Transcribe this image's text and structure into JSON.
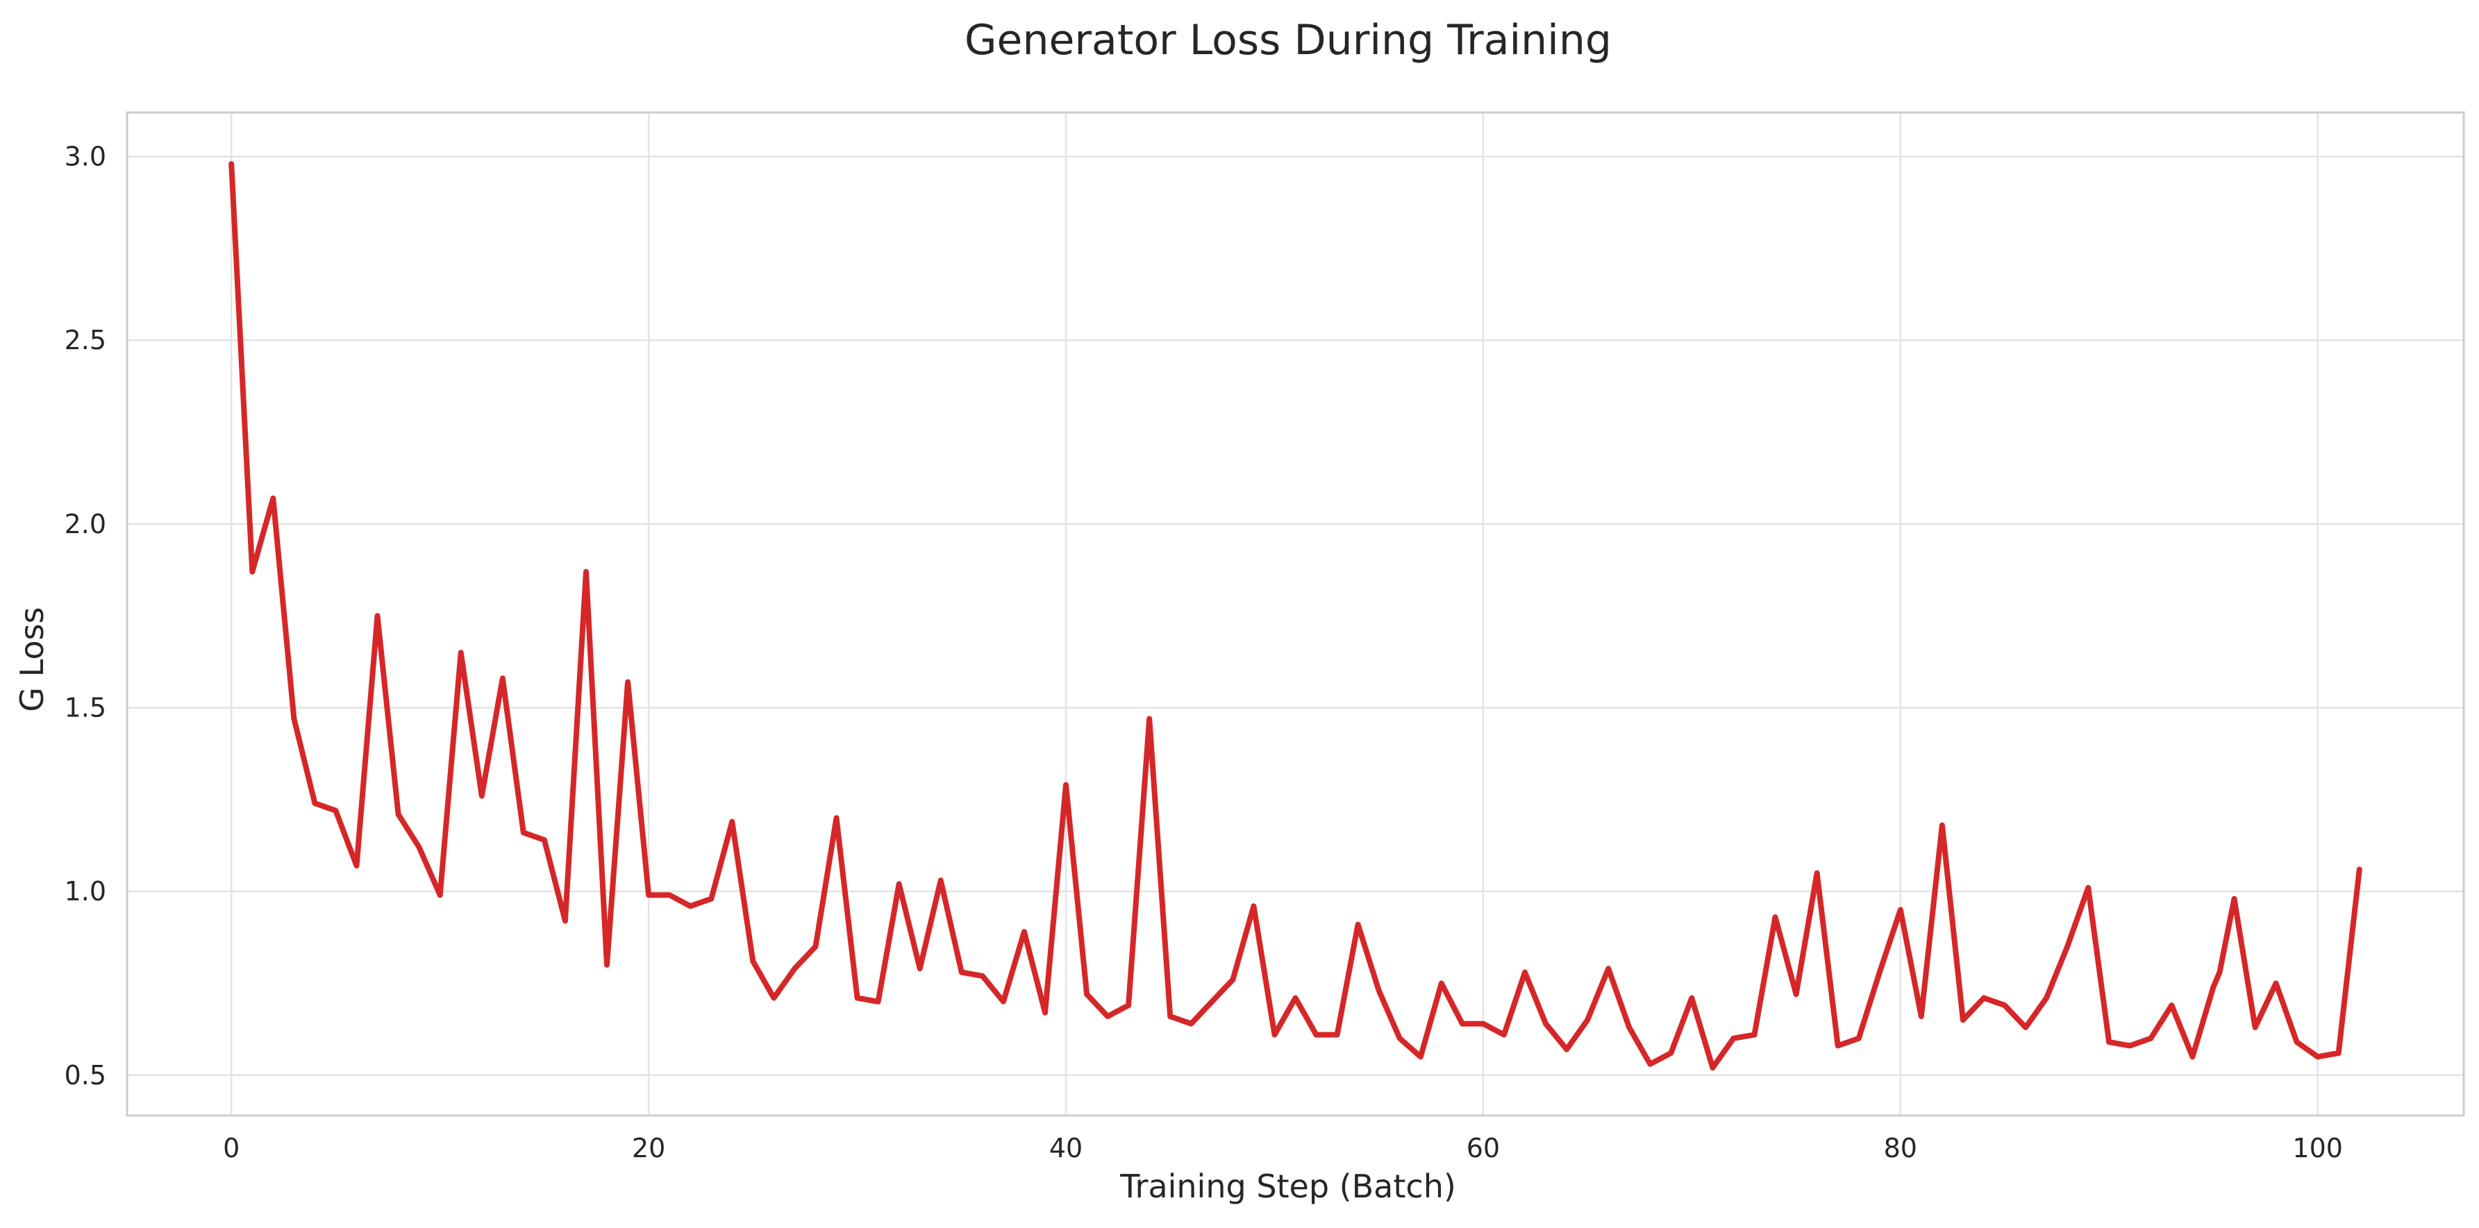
{
  "chart_data": {
    "type": "line",
    "title": "Generator Loss During Training",
    "xlabel": "Training Step (Batch)",
    "ylabel": "G Loss",
    "xlim": [
      -5,
      107
    ],
    "ylim": [
      0.39,
      3.12
    ],
    "xticks": [
      0,
      20,
      40,
      60,
      80,
      100
    ],
    "yticks": [
      0.5,
      1.0,
      1.5,
      2.0,
      2.5,
      3.0
    ],
    "xtick_labels": [
      "0",
      "20",
      "40",
      "60",
      "80",
      "100"
    ],
    "ytick_labels": [
      "0.5",
      "1.0",
      "1.5",
      "2.0",
      "2.5",
      "3.0"
    ],
    "grid": true,
    "series": [
      {
        "color": "#d62728",
        "x": [
          0,
          1,
          2,
          3,
          4,
          5,
          6,
          7,
          8,
          9,
          10,
          11,
          12,
          13,
          14,
          15,
          16,
          17,
          18,
          19,
          20,
          21,
          22,
          23,
          24,
          25,
          26,
          27,
          28,
          29,
          30,
          31,
          32,
          33,
          34,
          35,
          36,
          37,
          38,
          39,
          40,
          41,
          42,
          43,
          44,
          45,
          46,
          47,
          48,
          49,
          50,
          51,
          52,
          53,
          54,
          55,
          56,
          57,
          58,
          59,
          60,
          61,
          62,
          63,
          64,
          65,
          66,
          67,
          68,
          69,
          70,
          71,
          72,
          73,
          74,
          75,
          76,
          77,
          78,
          79,
          80,
          81,
          82,
          83,
          84,
          85,
          86,
          87,
          88,
          89,
          90,
          91,
          92,
          93,
          94,
          95,
          95.3,
          96,
          97,
          98,
          99,
          100,
          101,
          102
        ],
        "y": [
          2.98,
          1.87,
          2.07,
          1.47,
          1.24,
          1.22,
          1.07,
          1.75,
          1.21,
          1.12,
          0.99,
          1.65,
          1.26,
          1.58,
          1.16,
          1.14,
          0.92,
          1.87,
          0.8,
          1.57,
          0.99,
          0.99,
          0.96,
          0.98,
          1.19,
          0.81,
          0.71,
          0.79,
          0.85,
          1.2,
          0.71,
          0.7,
          1.02,
          0.79,
          1.03,
          0.78,
          0.77,
          0.7,
          0.89,
          0.67,
          1.29,
          0.72,
          0.66,
          0.69,
          1.47,
          0.66,
          0.64,
          0.7,
          0.76,
          0.96,
          0.61,
          0.71,
          0.61,
          0.61,
          0.91,
          0.73,
          0.6,
          0.55,
          0.75,
          0.64,
          0.64,
          0.61,
          0.78,
          0.64,
          0.57,
          0.65,
          0.79,
          0.63,
          0.53,
          0.56,
          0.71,
          0.52,
          0.6,
          0.61,
          0.93,
          0.72,
          1.05,
          0.58,
          0.6,
          0.78,
          0.95,
          0.66,
          1.18,
          0.65,
          0.71,
          0.69,
          0.63,
          0.71,
          0.85,
          1.01,
          0.59,
          0.58,
          0.6,
          0.69,
          0.55,
          0.74,
          0.78,
          0.98,
          0.63,
          0.75,
          0.59,
          0.55,
          0.56,
          1.06
        ]
      }
    ]
  }
}
